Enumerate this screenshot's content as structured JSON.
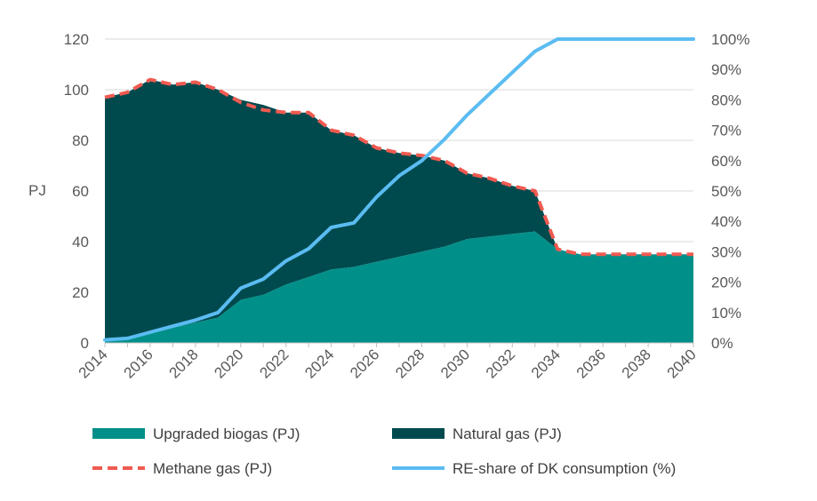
{
  "chart_data": {
    "type": "area",
    "ylabel": "PJ",
    "x": [
      2014,
      2015,
      2016,
      2017,
      2018,
      2019,
      2020,
      2021,
      2022,
      2023,
      2024,
      2025,
      2026,
      2027,
      2028,
      2029,
      2030,
      2031,
      2032,
      2033,
      2034,
      2035,
      2036,
      2037,
      2038,
      2039,
      2040
    ],
    "x_ticks": [
      "2014",
      "2016",
      "2018",
      "2020",
      "2022",
      "2024",
      "2026",
      "2028",
      "2030",
      "2032",
      "2034",
      "2036",
      "2038",
      "2040"
    ],
    "y_ticks": [
      "0",
      "20",
      "40",
      "60",
      "80",
      "100",
      "120"
    ],
    "y2_ticks": [
      "0%",
      "10%",
      "20%",
      "30%",
      "40%",
      "50%",
      "60%",
      "70%",
      "80%",
      "90%",
      "100%"
    ],
    "ylim": [
      0,
      120
    ],
    "y2lim": [
      0,
      100
    ],
    "grid": true,
    "legend_position": "bottom",
    "series": [
      {
        "name": "Upgraded biogas (PJ)",
        "kind": "area",
        "color": "#009089",
        "values": [
          1,
          2,
          4,
          6,
          8,
          10,
          17,
          19,
          23,
          26,
          29,
          30,
          32,
          34,
          36,
          38,
          41,
          42,
          43,
          44,
          37,
          35,
          35,
          35,
          35,
          35,
          35
        ]
      },
      {
        "name": "Natural gas (PJ)",
        "kind": "area-stacked",
        "color": "#004a4e",
        "values": [
          96,
          97,
          100,
          96,
          95,
          90,
          79,
          75,
          68,
          65,
          55,
          52,
          45,
          41,
          38,
          34,
          26,
          23,
          19,
          16,
          0,
          0,
          0,
          0,
          0,
          0,
          0
        ]
      },
      {
        "name": "Methane gas (PJ)",
        "kind": "dashed-line",
        "color": "#f05a50",
        "values": [
          97,
          99,
          104,
          102,
          103,
          100,
          95,
          92,
          91,
          91,
          84,
          82,
          77,
          75,
          74,
          72,
          67,
          65,
          62,
          60,
          37,
          35,
          35,
          35,
          35,
          35,
          35
        ]
      },
      {
        "name": "RE-share of DK consumption (%)",
        "kind": "line-secondary-axis",
        "color": "#5bbcf2",
        "values": [
          1,
          1.5,
          3.5,
          5.5,
          7.5,
          10,
          18,
          21,
          27,
          31,
          38,
          39.5,
          48,
          55,
          60,
          67,
          75,
          82,
          89,
          96,
          100,
          100,
          100,
          100,
          100,
          100,
          100
        ]
      }
    ]
  }
}
